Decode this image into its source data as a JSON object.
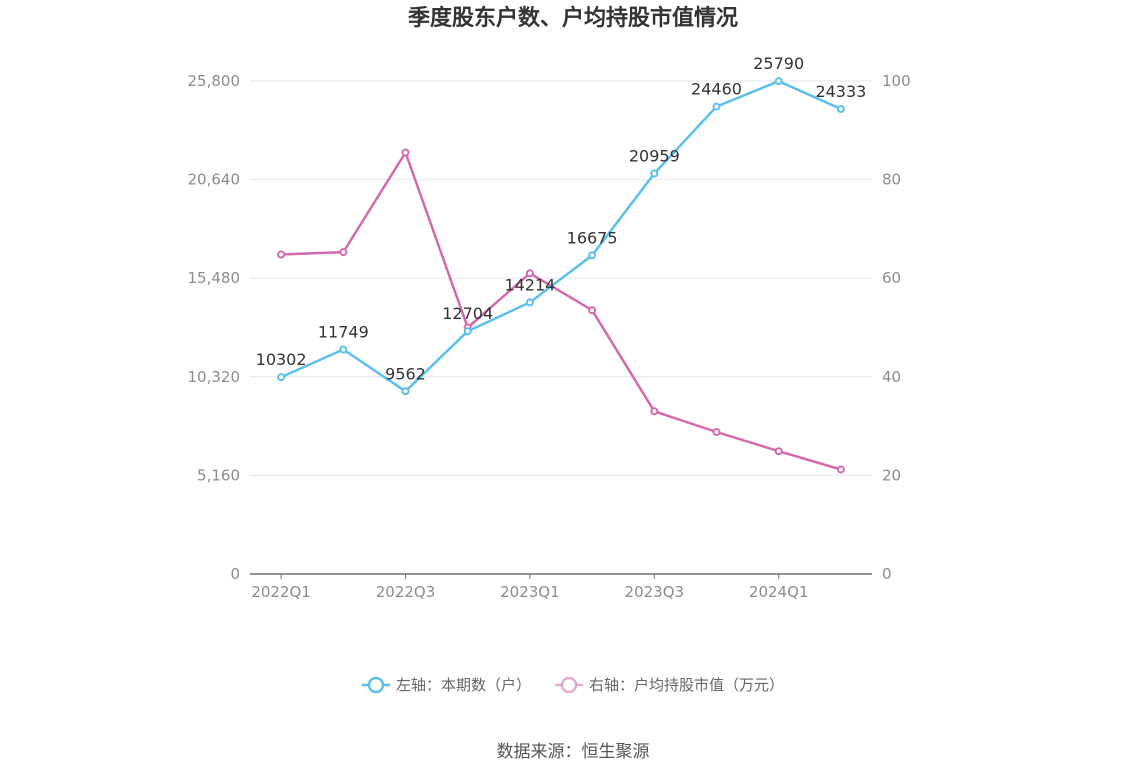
{
  "chart_data": {
    "type": "line",
    "title": "季度股东户数、户均持股市值情况",
    "categories": [
      "2022Q1",
      "2022Q2",
      "2022Q3",
      "2022Q4",
      "2023Q1",
      "2023Q2",
      "2023Q3",
      "2023Q4",
      "2024Q1",
      "2024Q2"
    ],
    "x_tick_labels": [
      "2022Q1",
      "2022Q3",
      "2023Q1",
      "2023Q3",
      "2024Q1"
    ],
    "left_axis": {
      "ticks": [
        "0",
        "5,160",
        "10,320",
        "15,480",
        "20,640",
        "25,800"
      ],
      "ylim": [
        0,
        25800
      ]
    },
    "right_axis": {
      "ticks": [
        "0",
        "20",
        "40",
        "60",
        "80",
        "100"
      ],
      "ylim": [
        0,
        100
      ]
    },
    "series": [
      {
        "name": "左轴：本期数（户）",
        "axis": "left",
        "color": "#5bc0f0",
        "values": [
          10302,
          11749,
          9562,
          12704,
          14214,
          16675,
          20959,
          24460,
          25790,
          24333
        ],
        "labels": [
          "10302",
          "11749",
          "9562",
          "12704",
          "14214",
          "16675",
          "20959",
          "24460",
          "25790",
          "24333"
        ]
      },
      {
        "name": "右轴：户均持股市值（万元）",
        "axis": "right",
        "color": "#d46aae",
        "values": [
          64.8,
          65.3,
          85.5,
          50.0,
          61.0,
          53.5,
          33.0,
          28.8,
          24.9,
          21.2
        ]
      }
    ],
    "grid": true,
    "legend_position": "bottom"
  },
  "source_text": "数据来源：恒生聚源"
}
